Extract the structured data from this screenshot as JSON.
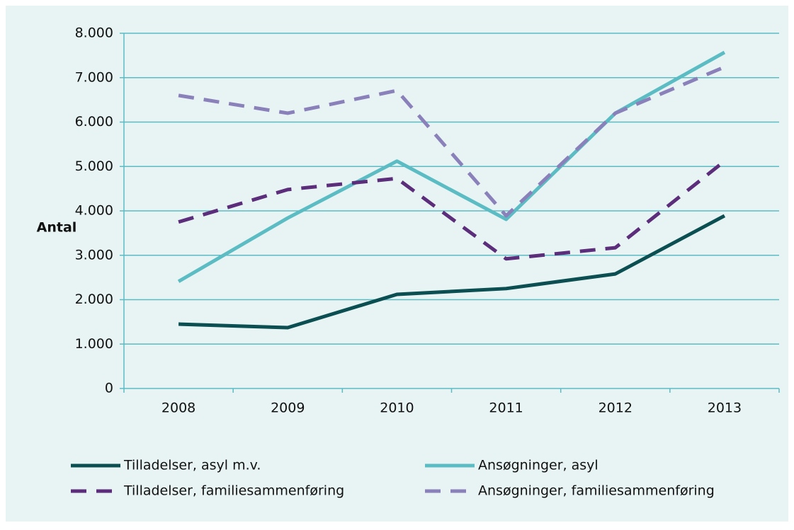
{
  "chart_data": {
    "type": "line",
    "y_label": "Antal",
    "categories": [
      "2008",
      "2009",
      "2010",
      "2011",
      "2012",
      "2013"
    ],
    "series": [
      {
        "name": "Tilladelser, asyl m.v.",
        "color": "#0b4f52",
        "dashed": false,
        "values": [
          1450,
          1370,
          2120,
          2250,
          2580,
          3890
        ]
      },
      {
        "name": "Ansøgninger, asyl",
        "color": "#5bbcc4",
        "dashed": false,
        "values": [
          2410,
          3840,
          5120,
          3810,
          6200,
          7570
        ]
      },
      {
        "name": "Tilladelser, familiesammenføring",
        "color": "#5b2d7a",
        "dashed": true,
        "values": [
          3750,
          4480,
          4730,
          2920,
          3170,
          5120
        ]
      },
      {
        "name": "Ansøgninger, familiesammenføring",
        "color": "#8a80ba",
        "dashed": true,
        "values": [
          6600,
          6200,
          6710,
          3890,
          6200,
          7240
        ]
      }
    ],
    "ylim": [
      0,
      8000
    ],
    "yticks": [
      0,
      {
        "value": 1000,
        "label": "1.000"
      },
      {
        "value": 2000,
        "label": "2.000"
      },
      {
        "value": 3000,
        "label": "3.000"
      },
      {
        "value": 4000,
        "label": "4.000"
      },
      {
        "value": 5000,
        "label": "5.000"
      },
      {
        "value": 6000,
        "label": "6.000"
      },
      {
        "value": 7000,
        "label": "7.000"
      },
      {
        "value": 8000,
        "label": "8.000"
      }
    ],
    "grid": true
  }
}
